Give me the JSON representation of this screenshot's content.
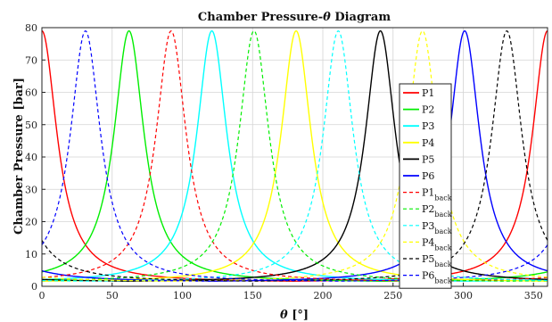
{
  "chart_data": {
    "type": "line",
    "title": "Chamber Pressure-",
    "title_symbol": "θ",
    "title_suffix": " Diagram",
    "xlabel_symbol": "θ",
    "xlabel_unit": " [°]",
    "ylabel": "Chamber Pressure [bar]",
    "xlim": [
      0,
      360
    ],
    "ylim": [
      0,
      80
    ],
    "xticks": [
      "0",
      "50",
      "100",
      "150",
      "200",
      "250",
      "300",
      "350"
    ],
    "yticks": [
      "0",
      "10",
      "20",
      "30",
      "40",
      "50",
      "60",
      "70",
      "80"
    ],
    "grid": true,
    "legend_position": "right",
    "model": {
      "peak": 79,
      "base": 1.2,
      "halfwidth_deg": 13
    },
    "series": [
      {
        "name": "P1",
        "label_main": "P1",
        "label_sub": "",
        "peak_at": 0,
        "color": "#ff0000",
        "dash": "solid"
      },
      {
        "name": "P2",
        "label_main": "P2",
        "label_sub": "",
        "peak_at": 62,
        "color": "#00ee00",
        "dash": "solid"
      },
      {
        "name": "P3",
        "label_main": "P3",
        "label_sub": "",
        "peak_at": 121,
        "color": "#00ffff",
        "dash": "solid"
      },
      {
        "name": "P4",
        "label_main": "P4",
        "label_sub": "",
        "peak_at": 181,
        "color": "#ffff00",
        "dash": "solid"
      },
      {
        "name": "P5",
        "label_main": "P5",
        "label_sub": "",
        "peak_at": 241,
        "color": "#000000",
        "dash": "solid"
      },
      {
        "name": "P6",
        "label_main": "P6",
        "label_sub": "",
        "peak_at": 301,
        "color": "#0000ff",
        "dash": "solid"
      },
      {
        "name": "P1back",
        "label_main": "P1",
        "label_sub": "back",
        "peak_at": 92,
        "color": "#ff0000",
        "dash": "dashed"
      },
      {
        "name": "P2back",
        "label_main": "P2",
        "label_sub": "back",
        "peak_at": 151,
        "color": "#00ee00",
        "dash": "dashed"
      },
      {
        "name": "P3back",
        "label_main": "P3",
        "label_sub": "back",
        "peak_at": 211,
        "color": "#00ffff",
        "dash": "dashed"
      },
      {
        "name": "P4back",
        "label_main": "P4",
        "label_sub": "back",
        "peak_at": 271,
        "color": "#ffff00",
        "dash": "dashed"
      },
      {
        "name": "P5back",
        "label_main": "P5",
        "label_sub": "back",
        "peak_at": 331,
        "color": "#000000",
        "dash": "dashed"
      },
      {
        "name": "P6back",
        "label_main": "P6",
        "label_sub": "back",
        "peak_at": 31,
        "color": "#0000ff",
        "dash": "dashed"
      }
    ]
  }
}
